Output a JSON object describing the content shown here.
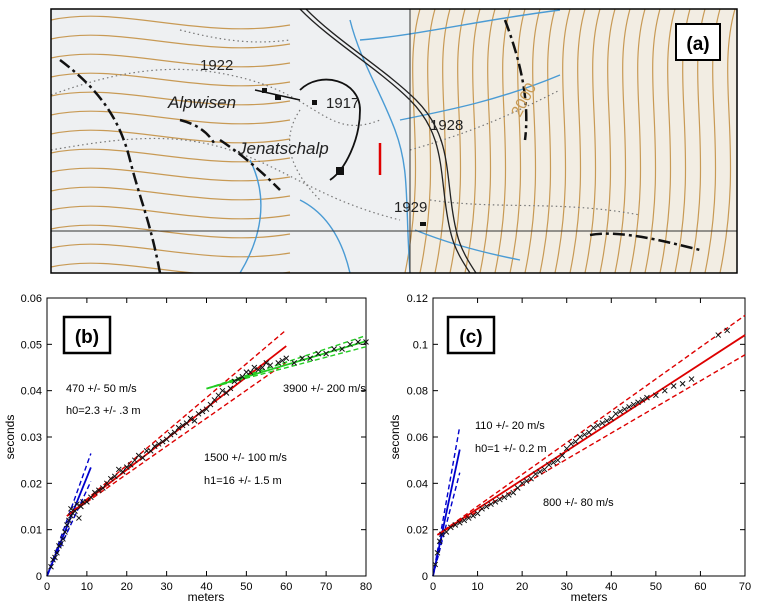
{
  "panel_a": {
    "badge": "(a)",
    "place_names": [
      "Alpwisen",
      "Jenatschalp"
    ],
    "spot_heights": [
      "1922",
      "1917",
      "1928",
      "1929"
    ],
    "contour_label": "2000",
    "colors": {
      "background": "#eef0f2",
      "contour": "#c89a55",
      "river": "#4a9bd4",
      "road": "#000000",
      "survey_line": "#e00000"
    }
  },
  "chart_data": [
    {
      "panel": "(b)",
      "type": "scatter",
      "xlabel": "meters",
      "ylabel": "seconds",
      "xlim": [
        0,
        80
      ],
      "ylim": [
        0,
        0.06
      ],
      "xticks": [
        0,
        10,
        20,
        30,
        40,
        50,
        60,
        70,
        80
      ],
      "yticks": [
        0,
        0.01,
        0.02,
        0.03,
        0.04,
        0.05,
        0.06
      ],
      "annotations": [
        {
          "id": "v1",
          "text": "470 +/- 50 m/s"
        },
        {
          "id": "h0",
          "text": "h0=2.3 +/- .3 m"
        },
        {
          "id": "v3",
          "text": "3900 +/- 200 m/s"
        },
        {
          "id": "v2",
          "text": "1500 +/- 100 m/s"
        },
        {
          "id": "h1",
          "text": "h1=16 +/- 1.5 m"
        }
      ],
      "series": [
        {
          "color": "#0000cc",
          "slope": 0.00213,
          "intercept": 0.0,
          "x_range": [
            0,
            11
          ],
          "band": 0.003
        },
        {
          "color": "#dd0000",
          "slope": 0.000667,
          "intercept": 0.0096,
          "x_range": [
            5,
            60
          ],
          "band": 0.0035
        },
        {
          "color": "#22cc22",
          "slope": 0.000256,
          "intercept": 0.0302,
          "x_range": [
            40,
            80
          ],
          "band": 0.0012
        }
      ],
      "points": [
        [
          1,
          0.002
        ],
        [
          1.5,
          0.0035
        ],
        [
          2,
          0.004
        ],
        [
          2.5,
          0.005
        ],
        [
          3,
          0.0065
        ],
        [
          3.5,
          0.007
        ],
        [
          4,
          0.008
        ],
        [
          4.5,
          0.0095
        ],
        [
          5,
          0.011
        ],
        [
          5.5,
          0.012
        ],
        [
          6,
          0.013
        ],
        [
          6,
          0.0145
        ],
        [
          6.5,
          0.0135
        ],
        [
          7,
          0.014
        ],
        [
          7.5,
          0.0155
        ],
        [
          8,
          0.0125
        ],
        [
          8.5,
          0.015
        ],
        [
          9,
          0.016
        ],
        [
          10,
          0.016
        ],
        [
          11,
          0.017
        ],
        [
          12,
          0.018
        ],
        [
          13,
          0.0185
        ],
        [
          14,
          0.019
        ],
        [
          15,
          0.02
        ],
        [
          16,
          0.021
        ],
        [
          17,
          0.0215
        ],
        [
          18,
          0.023
        ],
        [
          19,
          0.0225
        ],
        [
          20,
          0.0235
        ],
        [
          21,
          0.024
        ],
        [
          22,
          0.025
        ],
        [
          23,
          0.026
        ],
        [
          24,
          0.0255
        ],
        [
          25,
          0.027
        ],
        [
          26,
          0.027
        ],
        [
          27,
          0.028
        ],
        [
          28,
          0.0285
        ],
        [
          29,
          0.029
        ],
        [
          30,
          0.0295
        ],
        [
          31,
          0.0305
        ],
        [
          32,
          0.031
        ],
        [
          33,
          0.032
        ],
        [
          34,
          0.0325
        ],
        [
          35,
          0.033
        ],
        [
          36,
          0.034
        ],
        [
          37,
          0.0335
        ],
        [
          38,
          0.035
        ],
        [
          39,
          0.0355
        ],
        [
          40,
          0.036
        ],
        [
          41,
          0.037
        ],
        [
          42,
          0.038
        ],
        [
          43,
          0.039
        ],
        [
          44,
          0.04
        ],
        [
          45,
          0.0395
        ],
        [
          46,
          0.0405
        ],
        [
          47,
          0.042
        ],
        [
          48,
          0.0425
        ],
        [
          49,
          0.043
        ],
        [
          50,
          0.044
        ],
        [
          51,
          0.044
        ],
        [
          52,
          0.045
        ],
        [
          53,
          0.0445
        ],
        [
          54,
          0.045
        ],
        [
          55,
          0.046
        ],
        [
          56,
          0.0455
        ],
        [
          58,
          0.046
        ],
        [
          59,
          0.0465
        ],
        [
          60,
          0.047
        ],
        [
          62,
          0.046
        ],
        [
          64,
          0.047
        ],
        [
          66,
          0.047
        ],
        [
          68,
          0.048
        ],
        [
          70,
          0.048
        ],
        [
          72,
          0.049
        ],
        [
          74,
          0.049
        ],
        [
          76,
          0.05
        ],
        [
          78,
          0.0505
        ],
        [
          80,
          0.0505
        ]
      ]
    },
    {
      "panel": "(c)",
      "type": "scatter",
      "xlabel": "meters",
      "ylabel": "seconds",
      "xlim": [
        0,
        70
      ],
      "ylim": [
        0,
        0.12
      ],
      "xticks": [
        0,
        10,
        20,
        30,
        40,
        50,
        60,
        70
      ],
      "yticks": [
        0,
        0.02,
        0.04,
        0.06,
        0.08,
        0.1,
        0.12
      ],
      "annotations": [
        {
          "id": "v1",
          "text": "110 +/- 20 m/s"
        },
        {
          "id": "h0",
          "text": "h0=1 +/- 0.2 m"
        },
        {
          "id": "v2",
          "text": "800 +/- 80 m/s"
        }
      ],
      "series": [
        {
          "color": "#0000cc",
          "slope": 0.0091,
          "intercept": 0.0,
          "x_range": [
            0,
            6
          ],
          "band": 0.01
        },
        {
          "color": "#dd0000",
          "slope": 0.00125,
          "intercept": 0.0165,
          "x_range": [
            1,
            70
          ],
          "band": 0.0085
        }
      ],
      "points": [
        [
          0.5,
          0.005
        ],
        [
          1,
          0.01
        ],
        [
          1.5,
          0.015
        ],
        [
          2,
          0.018
        ],
        [
          3,
          0.019
        ],
        [
          4,
          0.021
        ],
        [
          5,
          0.022
        ],
        [
          6,
          0.023
        ],
        [
          7,
          0.024
        ],
        [
          8,
          0.025
        ],
        [
          9,
          0.026
        ],
        [
          10,
          0.027
        ],
        [
          11,
          0.029
        ],
        [
          12,
          0.03
        ],
        [
          13,
          0.031
        ],
        [
          14,
          0.032
        ],
        [
          15,
          0.033
        ],
        [
          16,
          0.034
        ],
        [
          17,
          0.035
        ],
        [
          18,
          0.036
        ],
        [
          19,
          0.038
        ],
        [
          20,
          0.04
        ],
        [
          21,
          0.041
        ],
        [
          22,
          0.042
        ],
        [
          23,
          0.044
        ],
        [
          24,
          0.045
        ],
        [
          25,
          0.046
        ],
        [
          26,
          0.048
        ],
        [
          27,
          0.049
        ],
        [
          28,
          0.05
        ],
        [
          29,
          0.052
        ],
        [
          30,
          0.055
        ],
        [
          31,
          0.057
        ],
        [
          32,
          0.058
        ],
        [
          33,
          0.06
        ],
        [
          34,
          0.061
        ],
        [
          35,
          0.062
        ],
        [
          36,
          0.064
        ],
        [
          37,
          0.065
        ],
        [
          38,
          0.066
        ],
        [
          39,
          0.067
        ],
        [
          40,
          0.068
        ],
        [
          41,
          0.07
        ],
        [
          42,
          0.071
        ],
        [
          43,
          0.072
        ],
        [
          44,
          0.073
        ],
        [
          45,
          0.074
        ],
        [
          46,
          0.075
        ],
        [
          47,
          0.076
        ],
        [
          48,
          0.077
        ],
        [
          50,
          0.078
        ],
        [
          52,
          0.08
        ],
        [
          54,
          0.082
        ],
        [
          56,
          0.083
        ],
        [
          58,
          0.085
        ],
        [
          64,
          0.104
        ],
        [
          66,
          0.106
        ]
      ]
    }
  ]
}
